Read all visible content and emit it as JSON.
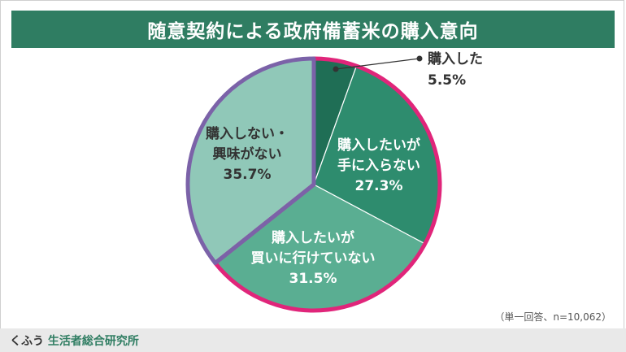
{
  "header": {
    "title": "随意契約による政府備蓄米の購入意向"
  },
  "note": "（単一回答、n=10,062）",
  "brand": {
    "prefix": "くふう",
    "name": "生活者総合研究所"
  },
  "colors": {
    "header_bg": "#2f7d62",
    "highlight_outline": "#e0257a",
    "purple_outline": "#7b62a8"
  },
  "chart_data": {
    "type": "pie",
    "title": "随意契約による政府備蓄米の購入意向",
    "start": "12 o'clock, clockwise",
    "slices": [
      {
        "lines": [
          "購入した"
        ],
        "value_label": "5.5%",
        "value": 5.5,
        "color": "#1f6e55"
      },
      {
        "lines": [
          "購入したいが",
          "手に入らない"
        ],
        "value_label": "27.3%",
        "value": 27.3,
        "color": "#2e8c6e"
      },
      {
        "lines": [
          "購入したいが",
          "買いに行けていない"
        ],
        "value_label": "31.5%",
        "value": 31.5,
        "color": "#5aae92"
      },
      {
        "lines": [
          "購入しない・",
          "興味がない"
        ],
        "value_label": "35.7%",
        "value": 35.7,
        "color": "#90c8b8"
      }
    ]
  }
}
